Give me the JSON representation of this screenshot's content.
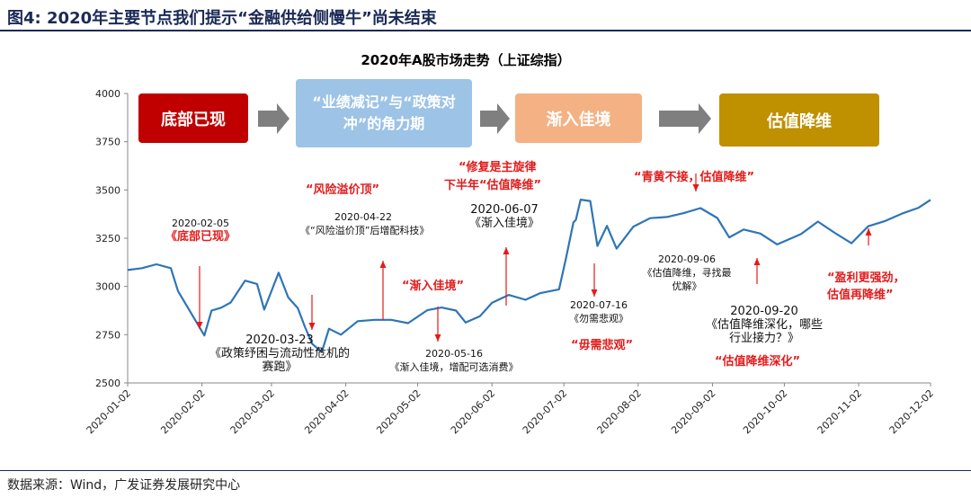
{
  "figure": {
    "number_label": "图4:",
    "title": "2020年主要节点我们提示“金融供给侧慢牛”尚未结束",
    "source": "数据来源：Wind，广发证券发展研究中心"
  },
  "colors": {
    "line": "#2e75b6",
    "arrow": "#e31b1b",
    "annotation_red": "#e31b1b",
    "stage1": "#c00000",
    "stage2": "#9dc3e6",
    "stage3": "#f4b183",
    "stage4": "#bf9000",
    "stage_arrow": "#7f7f7f"
  },
  "stages": [
    {
      "label": "底部已现",
      "color": "#c00000",
      "text_color": "#ffffff"
    },
    {
      "label": "“业绩减记”与“政策对冲”的角力期",
      "color": "#9dc3e6",
      "text_color": "#ffffff"
    },
    {
      "label": "渐入佳境",
      "color": "#f4b183",
      "text_color": "#ffffff"
    },
    {
      "label": "估值降维",
      "color": "#bf9000",
      "text_color": "#ffffff"
    }
  ],
  "annotations": [
    {
      "date": "2020-02-05",
      "text": "《底部已现》"
    },
    {
      "date": "2020-03-23",
      "text": "《政策纾困与流动性危机的赛跑》"
    },
    {
      "date": "2020-04-22",
      "text": "《“风险溢价顶”后增配科技》"
    },
    {
      "date": "2020-05-16",
      "text": "《渐入佳境，增配可选消费》"
    },
    {
      "date": "2020-06-07",
      "text": "《渐入佳境》"
    },
    {
      "date": "2020-07-16",
      "text": "《勿需悲观》"
    },
    {
      "date": "2020-09-06",
      "text": "《估值降维，寻找最优解》"
    },
    {
      "date": "2020-09-20",
      "text": "《估值降维深化，哪些行业接力？》"
    }
  ],
  "red_labels": [
    "“风险溢价顶”",
    "“渐入佳境”",
    "“修复是主旋律",
    "下半年“估值降维”",
    "“毋需悲观”",
    "“青黄不接，估值降维”",
    "“估值降维深化”",
    "“盈利更强劲，",
    "估值再降维”"
  ],
  "chart_data": {
    "type": "line",
    "title": "2020年A股市场走势（上证综指）",
    "x_type": "date",
    "x_ticks": [
      "2020-01-02",
      "2020-02-02",
      "2020-03-02",
      "2020-04-02",
      "2020-05-02",
      "2020-06-02",
      "2020-07-02",
      "2020-08-02",
      "2020-09-02",
      "2020-10-02",
      "2020-11-02",
      "2020-12-02"
    ],
    "y_ticks": [
      2500,
      2750,
      3000,
      3250,
      3500,
      3750,
      4000
    ],
    "ylim": [
      2500,
      4000
    ],
    "grid": false,
    "series": [
      {
        "x": [
          "2020-01-02",
          "2020-01-08",
          "2020-01-14",
          "2020-01-20",
          "2020-01-23",
          "2020-02-03",
          "2020-02-06",
          "2020-02-10",
          "2020-02-14",
          "2020-02-20",
          "2020-02-25",
          "2020-02-28",
          "2020-03-05",
          "2020-03-09",
          "2020-03-13",
          "2020-03-16",
          "2020-03-19",
          "2020-03-23",
          "2020-03-26",
          "2020-03-31",
          "2020-04-07",
          "2020-04-14",
          "2020-04-21",
          "2020-04-28",
          "2020-05-06",
          "2020-05-12",
          "2020-05-18",
          "2020-05-22",
          "2020-05-28",
          "2020-06-02",
          "2020-06-09",
          "2020-06-16",
          "2020-06-22",
          "2020-06-30",
          "2020-07-03",
          "2020-07-06",
          "2020-07-07",
          "2020-07-09",
          "2020-07-13",
          "2020-07-16",
          "2020-07-20",
          "2020-07-24",
          "2020-07-31",
          "2020-08-07",
          "2020-08-14",
          "2020-08-21",
          "2020-08-28",
          "2020-09-04",
          "2020-09-09",
          "2020-09-15",
          "2020-09-22",
          "2020-09-29",
          "2020-10-09",
          "2020-10-16",
          "2020-10-23",
          "2020-10-30",
          "2020-11-06",
          "2020-11-13",
          "2020-11-20",
          "2020-11-27",
          "2020-12-02"
        ],
        "values": [
          3085,
          3095,
          3115,
          3095,
          2976,
          2746,
          2875,
          2890,
          2917,
          3030,
          3013,
          2880,
          3071,
          2943,
          2887,
          2789,
          2702,
          2660,
          2781,
          2750,
          2820,
          2827,
          2827,
          2810,
          2877,
          2891,
          2875,
          2813,
          2846,
          2915,
          2956,
          2931,
          2965,
          2985,
          3152,
          3332,
          3345,
          3450,
          3443,
          3210,
          3314,
          3196,
          3310,
          3354,
          3360,
          3380,
          3406,
          3355,
          3254,
          3295,
          3274,
          3218,
          3272,
          3336,
          3278,
          3224,
          3312,
          3339,
          3377,
          3408,
          3449
        ]
      }
    ]
  }
}
